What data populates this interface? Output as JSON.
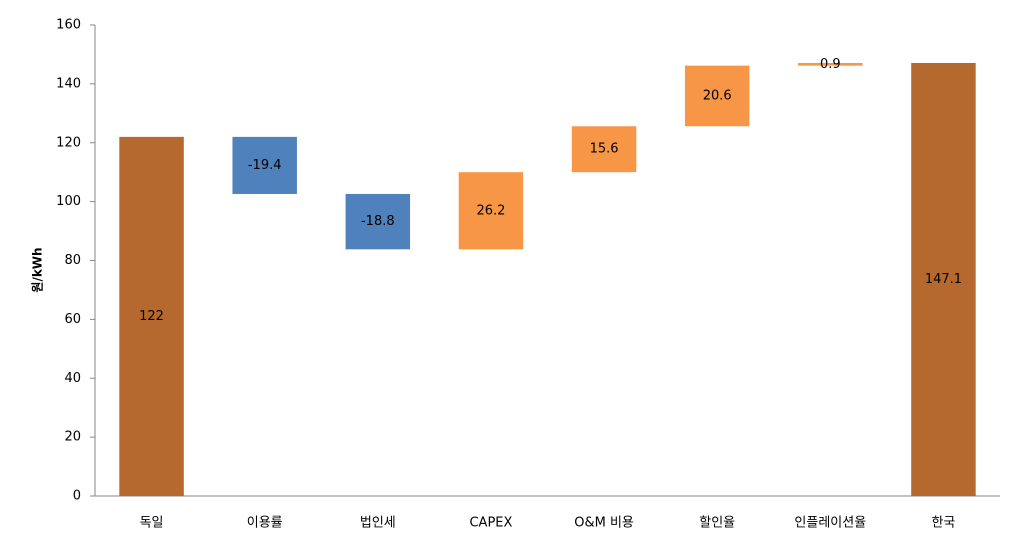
{
  "chart_data": {
    "type": "waterfall",
    "y_label": "원/kWh",
    "categories": [
      "독일",
      "이용률",
      "법인세",
      "CAPEX",
      "O&M 비용",
      "할인율",
      "인플레이션율",
      "한국"
    ],
    "values": [
      122,
      -19.4,
      -18.8,
      26.2,
      15.6,
      20.6,
      0.9,
      147.1
    ],
    "is_total": [
      true,
      false,
      false,
      false,
      false,
      false,
      false,
      true
    ],
    "colors": [
      "#b5692f",
      "#4f81bd",
      "#4f81bd",
      "#f79646",
      "#f79646",
      "#f79646",
      "#f79646",
      "#b5692f"
    ],
    "ylim": [
      0,
      160
    ],
    "yticks": [
      0,
      20,
      40,
      60,
      80,
      100,
      120,
      140,
      160
    ],
    "grid": false
  }
}
